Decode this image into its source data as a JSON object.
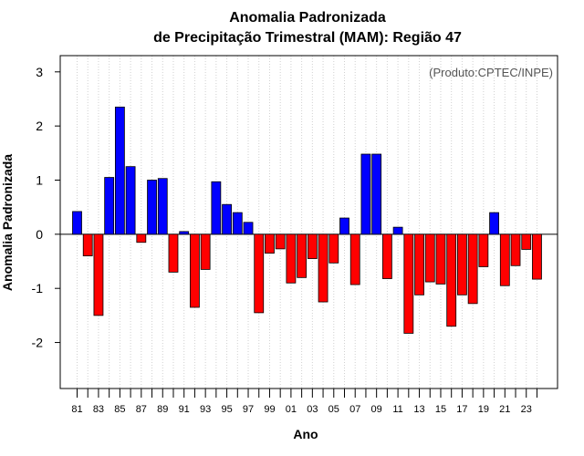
{
  "chart_data": {
    "type": "bar",
    "title": "Anomalia Padronizada",
    "subtitle": "de Precipitação Trimestral (MAM): Região 47",
    "xlabel": "Ano",
    "ylabel": "Anomalia Padronizada",
    "annotation": "(Produto:CPTEC/INPE)",
    "ylim": [
      -2.85,
      3.3
    ],
    "yticks": [
      -2,
      -1,
      0,
      1,
      2,
      3
    ],
    "grid": "vertical dotted",
    "positive_color": "#0000ff",
    "negative_color": "#ff0000",
    "categories": [
      "81",
      "82",
      "83",
      "84",
      "85",
      "86",
      "87",
      "88",
      "89",
      "90",
      "91",
      "92",
      "93",
      "94",
      "95",
      "96",
      "97",
      "98",
      "99",
      "00",
      "01",
      "02",
      "03",
      "04",
      "05",
      "06",
      "07",
      "08",
      "09",
      "10",
      "11",
      "12",
      "13",
      "14",
      "15",
      "16",
      "17",
      "18",
      "19",
      "20",
      "21",
      "22",
      "23",
      "24"
    ],
    "xtick_labels": [
      "81",
      "83",
      "85",
      "87",
      "89",
      "91",
      "93",
      "95",
      "97",
      "99",
      "01",
      "03",
      "05",
      "07",
      "09",
      "11",
      "13",
      "15",
      "17",
      "19",
      "21",
      "23"
    ],
    "values": [
      0.42,
      -0.4,
      -1.5,
      1.05,
      2.35,
      1.25,
      -0.15,
      1.0,
      1.03,
      -0.7,
      0.05,
      -1.35,
      -0.65,
      0.97,
      0.55,
      0.4,
      0.22,
      -1.45,
      -0.35,
      -0.27,
      -0.9,
      -0.8,
      -0.45,
      -1.25,
      -0.53,
      0.3,
      -0.93,
      1.48,
      1.48,
      -0.82,
      0.13,
      -1.83,
      -1.12,
      -0.88,
      -0.92,
      -1.7,
      -1.12,
      -1.28,
      -0.6,
      0.4,
      -0.95,
      -0.58,
      -0.28,
      -0.83
    ]
  }
}
